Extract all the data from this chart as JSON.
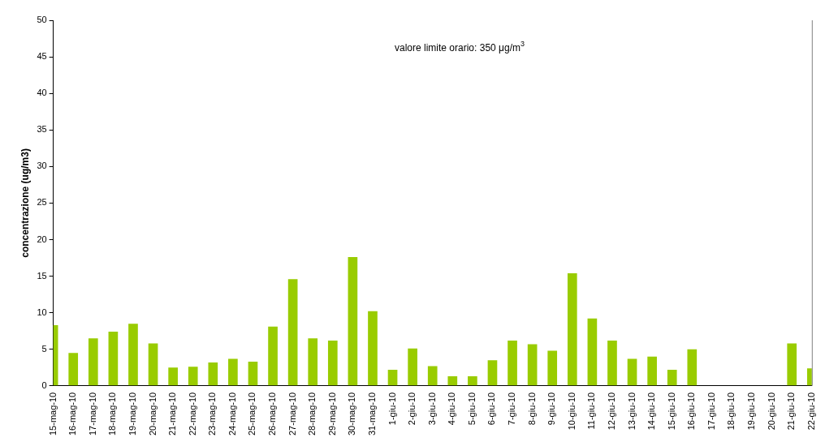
{
  "chart_data": {
    "type": "bar",
    "ylabel": "concentrazione (ug/m3)",
    "annotations": [
      "valore limite orario: 350 μg/m$^{3}$"
    ],
    "categories": [
      "15-mag-10",
      "16-mag-10",
      "17-mag-10",
      "18-mag-10",
      "19-mag-10",
      "20-mag-10",
      "21-mag-10",
      "22-mag-10",
      "23-mag-10",
      "24-mag-10",
      "25-mag-10",
      "26-mag-10",
      "27-mag-10",
      "28-mag-10",
      "29-mag-10",
      "30-mag-10",
      "31-mag-10",
      "1-giu-10",
      "2-giu-10",
      "3-giu-10",
      "4-giu-10",
      "5-giu-10",
      "6-giu-10",
      "7-giu-10",
      "8-giu-10",
      "9-giu-10",
      "10-giu-10",
      "11-giu-10",
      "12-giu-10",
      "13-giu-10",
      "14-giu-10",
      "15-giu-10",
      "16-giu-10",
      "17-giu-10",
      "18-giu-10",
      "19-giu-10",
      "20-giu-10",
      "21-giu-10",
      "22-giu-10"
    ],
    "values": [
      8.3,
      4.5,
      6.5,
      7.4,
      8.5,
      5.8,
      2.5,
      2.6,
      3.2,
      3.7,
      3.3,
      8.1,
      14.6,
      6.5,
      6.2,
      17.6,
      10.2,
      2.2,
      5.1,
      2.7,
      1.3,
      1.3,
      3.5,
      6.2,
      5.7,
      4.8,
      15.4,
      9.2,
      6.2,
      3.7,
      4.0,
      2.2,
      5.0,
      null,
      null,
      null,
      null,
      5.8,
      2.4
    ],
    "color": "#99cc00",
    "ylim": [
      0,
      50
    ],
    "yticks": [
      0,
      5,
      10,
      15,
      20,
      25,
      30,
      35,
      40,
      45,
      50
    ],
    "grid": false,
    "legend": false
  }
}
